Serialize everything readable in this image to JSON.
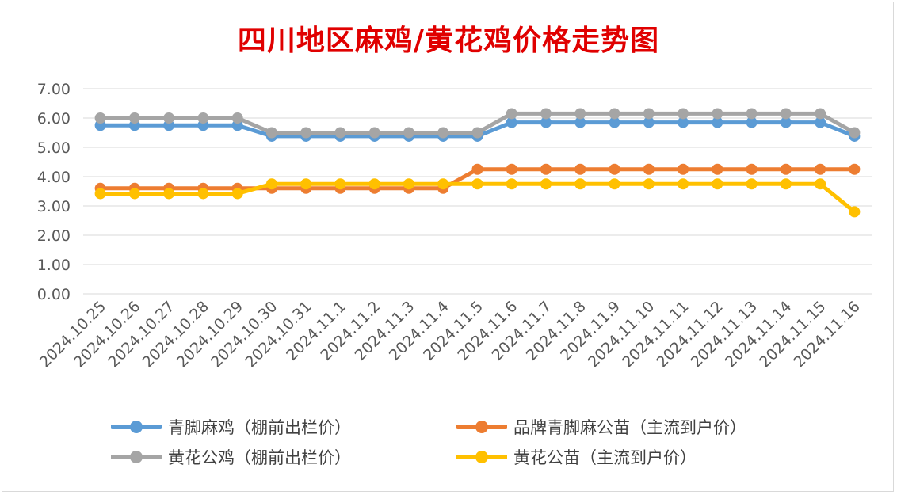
{
  "chart_data": {
    "type": "line",
    "title": "四川地区麻鸡/黄花鸡价格走势图",
    "xlabel": "",
    "ylabel": "",
    "ylim": [
      0,
      7
    ],
    "yticks": [
      "0.00",
      "1.00",
      "2.00",
      "3.00",
      "4.00",
      "5.00",
      "6.00",
      "7.00"
    ],
    "grid": true,
    "legend_position": "bottom",
    "categories": [
      "2024.10.25",
      "2024.10.26",
      "2024.10.27",
      "2024.10.28",
      "2024.10.29",
      "2024.10.30",
      "2024.10.31",
      "2024.11.1",
      "2024.11.2",
      "2024.11.3",
      "2024.11.4",
      "2024.11.5",
      "2024.11.6",
      "2024.11.7",
      "2024.11.8",
      "2024.11.9",
      "2024.11.10",
      "2024.11.11",
      "2024.11.12",
      "2024.11.13",
      "2024.11.14",
      "2024.11.15",
      "2024.11.16"
    ],
    "series": [
      {
        "name": "青脚麻鸡（棚前出栏价）",
        "color": "#5b9bd5",
        "values": [
          5.75,
          5.75,
          5.75,
          5.75,
          5.75,
          5.38,
          5.38,
          5.38,
          5.38,
          5.38,
          5.38,
          5.38,
          5.85,
          5.85,
          5.85,
          5.85,
          5.85,
          5.85,
          5.85,
          5.85,
          5.85,
          5.85,
          5.38
        ]
      },
      {
        "name": "品牌青脚麻公苗（主流到户价）",
        "color": "#ed7d31",
        "values": [
          3.6,
          3.6,
          3.6,
          3.6,
          3.6,
          3.6,
          3.6,
          3.6,
          3.6,
          3.6,
          3.6,
          4.25,
          4.25,
          4.25,
          4.25,
          4.25,
          4.25,
          4.25,
          4.25,
          4.25,
          4.25,
          4.25,
          4.25
        ]
      },
      {
        "name": "黄花公鸡（棚前出栏价）",
        "color": "#a5a5a5",
        "values": [
          6.0,
          6.0,
          6.0,
          6.0,
          6.0,
          5.5,
          5.5,
          5.5,
          5.5,
          5.5,
          5.5,
          5.5,
          6.15,
          6.15,
          6.15,
          6.15,
          6.15,
          6.15,
          6.15,
          6.15,
          6.15,
          6.15,
          5.5
        ]
      },
      {
        "name": "黄花公苗（主流到户价）",
        "color": "#ffc000",
        "values": [
          3.42,
          3.42,
          3.42,
          3.42,
          3.42,
          3.75,
          3.75,
          3.75,
          3.75,
          3.75,
          3.75,
          3.75,
          3.75,
          3.75,
          3.75,
          3.75,
          3.75,
          3.75,
          3.75,
          3.75,
          3.75,
          3.75,
          2.8
        ]
      }
    ]
  }
}
